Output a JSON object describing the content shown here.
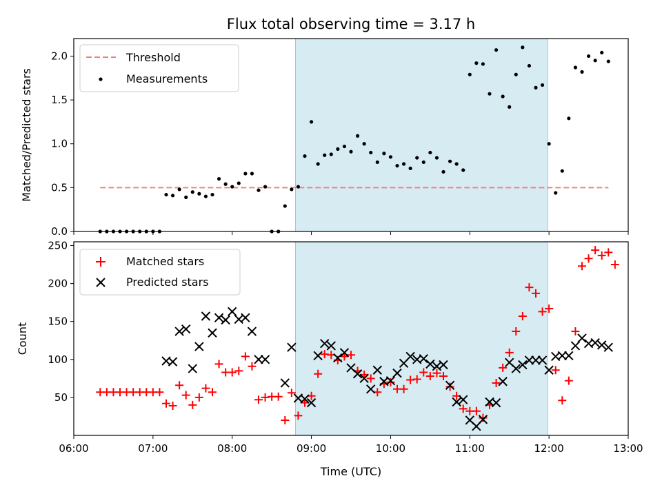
{
  "chart_data": {
    "type": "scatter",
    "title": "Flux total observing time = 3.17 h",
    "xlabel": "Time (UTC)",
    "x_ticks": [
      "06:00",
      "07:00",
      "08:00",
      "09:00",
      "10:00",
      "11:00",
      "12:00",
      "13:00"
    ],
    "x_range": [
      "06:00",
      "13:00"
    ],
    "shaded_span": [
      "08:48",
      "11:59"
    ],
    "panels": [
      {
        "ylabel": "Matched/Predicted stars",
        "ylim": [
          0,
          2.2
        ],
        "y_ticks": [
          "0.0",
          "0.5",
          "1.0",
          "1.5",
          "2.0"
        ],
        "legend": "upper-left",
        "threshold": {
          "name": "Threshold",
          "value": 0.5,
          "x": [
            "06:20",
            "12:45"
          ],
          "color": "#f08080"
        },
        "series": [
          {
            "name": "Measurements",
            "marker": "dot",
            "color": "#000000",
            "points": [
              [
                "06:20",
                0.0
              ],
              [
                "06:25",
                0.0
              ],
              [
                "06:30",
                0.0
              ],
              [
                "06:35",
                0.0
              ],
              [
                "06:40",
                0.0
              ],
              [
                "06:45",
                0.0
              ],
              [
                "06:50",
                0.0
              ],
              [
                "06:55",
                0.0
              ],
              [
                "07:00",
                0.0
              ],
              [
                "07:05",
                0.0
              ],
              [
                "07:10",
                0.42
              ],
              [
                "07:15",
                0.41
              ],
              [
                "07:20",
                0.48
              ],
              [
                "07:25",
                0.39
              ],
              [
                "07:30",
                0.45
              ],
              [
                "07:35",
                0.43
              ],
              [
                "07:40",
                0.4
              ],
              [
                "07:45",
                0.42
              ],
              [
                "07:50",
                0.6
              ],
              [
                "07:55",
                0.54
              ],
              [
                "08:00",
                0.51
              ],
              [
                "08:05",
                0.55
              ],
              [
                "08:10",
                0.66
              ],
              [
                "08:15",
                0.66
              ],
              [
                "08:20",
                0.47
              ],
              [
                "08:25",
                0.51
              ],
              [
                "08:30",
                0.0
              ],
              [
                "08:35",
                0.0
              ],
              [
                "08:40",
                0.29
              ],
              [
                "08:45",
                0.48
              ],
              [
                "08:50",
                0.51
              ],
              [
                "08:55",
                0.86
              ],
              [
                "09:00",
                1.25
              ],
              [
                "09:05",
                0.77
              ],
              [
                "09:10",
                0.87
              ],
              [
                "09:15",
                0.88
              ],
              [
                "09:20",
                0.94
              ],
              [
                "09:25",
                0.97
              ],
              [
                "09:30",
                0.91
              ],
              [
                "09:35",
                1.09
              ],
              [
                "09:40",
                1.0
              ],
              [
                "09:45",
                0.9
              ],
              [
                "09:50",
                0.79
              ],
              [
                "09:55",
                0.89
              ],
              [
                "10:00",
                0.85
              ],
              [
                "10:05",
                0.75
              ],
              [
                "10:10",
                0.77
              ],
              [
                "10:15",
                0.72
              ],
              [
                "10:20",
                0.84
              ],
              [
                "10:25",
                0.79
              ],
              [
                "10:30",
                0.9
              ],
              [
                "10:35",
                0.84
              ],
              [
                "10:40",
                0.68
              ],
              [
                "10:45",
                0.8
              ],
              [
                "10:50",
                0.77
              ],
              [
                "10:55",
                0.7
              ],
              [
                "11:00",
                1.79
              ],
              [
                "11:05",
                1.92
              ],
              [
                "11:10",
                1.91
              ],
              [
                "11:15",
                1.57
              ],
              [
                "11:20",
                2.07
              ],
              [
                "11:25",
                1.54
              ],
              [
                "11:30",
                1.42
              ],
              [
                "11:35",
                1.79
              ],
              [
                "11:40",
                2.1
              ],
              [
                "11:45",
                1.89
              ],
              [
                "11:50",
                1.64
              ],
              [
                "11:55",
                1.67
              ],
              [
                "12:00",
                1.0
              ],
              [
                "12:05",
                0.44
              ],
              [
                "12:10",
                0.69
              ],
              [
                "12:15",
                1.29
              ],
              [
                "12:20",
                1.87
              ],
              [
                "12:25",
                1.82
              ],
              [
                "12:30",
                2.0
              ],
              [
                "12:35",
                1.95
              ],
              [
                "12:40",
                2.04
              ],
              [
                "12:45",
                1.94
              ]
            ]
          }
        ]
      },
      {
        "ylabel": "Count",
        "ylim": [
          0,
          255
        ],
        "y_ticks": [
          "50",
          "100",
          "150",
          "200",
          "250"
        ],
        "legend": "upper-left",
        "series": [
          {
            "name": "Matched stars",
            "marker": "plus",
            "color": "#ff0000",
            "points": [
              [
                "06:20",
                57
              ],
              [
                "06:25",
                57
              ],
              [
                "06:30",
                57
              ],
              [
                "06:35",
                57
              ],
              [
                "06:40",
                57
              ],
              [
                "06:45",
                57
              ],
              [
                "06:50",
                57
              ],
              [
                "06:55",
                57
              ],
              [
                "07:00",
                57
              ],
              [
                "07:05",
                57
              ],
              [
                "07:10",
                42
              ],
              [
                "07:15",
                39
              ],
              [
                "07:20",
                66
              ],
              [
                "07:25",
                53
              ],
              [
                "07:30",
                40
              ],
              [
                "07:35",
                50
              ],
              [
                "07:40",
                62
              ],
              [
                "07:45",
                57
              ],
              [
                "07:50",
                94
              ],
              [
                "07:55",
                83
              ],
              [
                "08:00",
                83
              ],
              [
                "08:05",
                85
              ],
              [
                "08:10",
                104
              ],
              [
                "08:15",
                91
              ],
              [
                "08:20",
                47
              ],
              [
                "08:25",
                50
              ],
              [
                "08:30",
                51
              ],
              [
                "08:35",
                51
              ],
              [
                "08:40",
                20
              ],
              [
                "08:45",
                56
              ],
              [
                "08:50",
                26
              ],
              [
                "08:55",
                43
              ],
              [
                "09:00",
                52
              ],
              [
                "09:05",
                81
              ],
              [
                "09:10",
                107
              ],
              [
                "09:15",
                106
              ],
              [
                "09:20",
                99
              ],
              [
                "09:25",
                104
              ],
              [
                "09:30",
                106
              ],
              [
                "09:35",
                85
              ],
              [
                "09:40",
                80
              ],
              [
                "09:45",
                75
              ],
              [
                "09:50",
                57
              ],
              [
                "09:55",
                68
              ],
              [
                "10:00",
                70
              ],
              [
                "10:05",
                61
              ],
              [
                "10:10",
                61
              ],
              [
                "10:15",
                73
              ],
              [
                "10:20",
                74
              ],
              [
                "10:25",
                83
              ],
              [
                "10:30",
                78
              ],
              [
                "10:35",
                82
              ],
              [
                "10:40",
                78
              ],
              [
                "10:45",
                64
              ],
              [
                "10:50",
                52
              ],
              [
                "10:55",
                35
              ],
              [
                "11:00",
                32
              ],
              [
                "11:05",
                32
              ],
              [
                "11:10",
                23
              ],
              [
                "11:15",
                40
              ],
              [
                "11:20",
                69
              ],
              [
                "11:25",
                89
              ],
              [
                "11:30",
                109
              ],
              [
                "11:35",
                137
              ],
              [
                "11:40",
                157
              ],
              [
                "11:45",
                195
              ],
              [
                "11:50",
                187
              ],
              [
                "11:55",
                163
              ],
              [
                "12:00",
                167
              ],
              [
                "12:05",
                86
              ],
              [
                "12:10",
                46
              ],
              [
                "12:15",
                72
              ],
              [
                "12:20",
                137
              ],
              [
                "12:25",
                223
              ],
              [
                "12:30",
                233
              ],
              [
                "12:35",
                244
              ],
              [
                "12:40",
                237
              ],
              [
                "12:45",
                241
              ],
              [
                "12:50",
                225
              ]
            ]
          },
          {
            "name": "Predicted stars",
            "marker": "x",
            "color": "#000000",
            "points": [
              [
                "07:10",
                98
              ],
              [
                "07:15",
                97
              ],
              [
                "07:20",
                137
              ],
              [
                "07:25",
                140
              ],
              [
                "07:30",
                88
              ],
              [
                "07:35",
                117
              ],
              [
                "07:40",
                157
              ],
              [
                "07:45",
                135
              ],
              [
                "07:50",
                155
              ],
              [
                "07:55",
                152
              ],
              [
                "08:00",
                163
              ],
              [
                "08:05",
                153
              ],
              [
                "08:10",
                155
              ],
              [
                "08:15",
                137
              ],
              [
                "08:20",
                100
              ],
              [
                "08:25",
                100
              ],
              [
                "08:40",
                69
              ],
              [
                "08:45",
                116
              ],
              [
                "08:50",
                49
              ],
              [
                "08:55",
                48
              ],
              [
                "09:00",
                43
              ],
              [
                "09:05",
                105
              ],
              [
                "09:10",
                121
              ],
              [
                "09:15",
                118
              ],
              [
                "09:20",
                102
              ],
              [
                "09:25",
                109
              ],
              [
                "09:30",
                89
              ],
              [
                "09:35",
                81
              ],
              [
                "09:40",
                75
              ],
              [
                "09:45",
                61
              ],
              [
                "09:50",
                86
              ],
              [
                "09:55",
                71
              ],
              [
                "10:00",
                72
              ],
              [
                "10:05",
                82
              ],
              [
                "10:10",
                95
              ],
              [
                "10:15",
                104
              ],
              [
                "10:20",
                100
              ],
              [
                "10:25",
                101
              ],
              [
                "10:30",
                94
              ],
              [
                "10:35",
                91
              ],
              [
                "10:40",
                93
              ],
              [
                "10:45",
                66
              ],
              [
                "10:50",
                44
              ],
              [
                "10:55",
                47
              ],
              [
                "11:00",
                20
              ],
              [
                "11:05",
                12
              ],
              [
                "11:10",
                21
              ],
              [
                "11:15",
                44
              ],
              [
                "11:20",
                43
              ],
              [
                "11:25",
                71
              ],
              [
                "11:30",
                96
              ],
              [
                "11:35",
                88
              ],
              [
                "11:40",
                93
              ],
              [
                "11:45",
                99
              ],
              [
                "11:50",
                99
              ],
              [
                "11:55",
                99
              ],
              [
                "12:00",
                86
              ],
              [
                "12:05",
                104
              ],
              [
                "12:10",
                105
              ],
              [
                "12:15",
                105
              ],
              [
                "12:20",
                118
              ],
              [
                "12:25",
                128
              ],
              [
                "12:30",
                121
              ],
              [
                "12:35",
                122
              ],
              [
                "12:40",
                119
              ],
              [
                "12:45",
                116
              ]
            ]
          }
        ]
      }
    ]
  }
}
